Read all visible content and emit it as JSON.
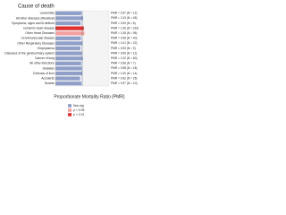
{
  "chart_data": {
    "type": "hbar",
    "title": "Cause of death",
    "xlabel": "Proportionate Mortality Ratio (PMR)",
    "categories": [
      "Leukemias",
      "All other diseases (Residual)",
      "Symptoms, signs and ill-defined",
      "Ischemic heart disease",
      "Other Heart Diseases",
      "Cerebrovascular disease",
      "Other Respiratory Diseases",
      "Emphysema",
      "Diseases of the genitourinary system",
      "Cancer of lung",
      "All other infections",
      "Diabetes",
      "Cirrhosis of liver",
      "Accidents",
      "Suicide"
    ],
    "values": [
      0.97,
      1.03,
      0.94,
      1.06,
      1.08,
      0.95,
      1.01,
      0.93,
      0.99,
      1.02,
      0.96,
      0.98,
      1.0,
      0.92,
      0.97
    ],
    "value_labels": [
      "PMR = 0.97 (N = 12)",
      "PMR = 1.03 (N = 45)",
      "PMR = 0.94 (N = 8)",
      "PMR = 1.06 (N = 310)",
      "PMR = 1.08 (N = 96)",
      "PMR = 0.95 (N = 40)",
      "PMR = 1.01 (N = 22)",
      "PMR = 0.93 (N = 9)",
      "PMR = 0.99 (N = 11)",
      "PMR = 1.02 (N = 60)",
      "PMR = 0.96 (N = 7)",
      "PMR = 0.98 (N = 18)",
      "PMR = 1.00 (N = 14)",
      "PMR = 0.92 (N = 25)",
      "PMR = 0.97 (N = 10)"
    ],
    "colors": [
      "#8f9fc8",
      "#8f9fc8",
      "#8f9fc8",
      "#e03030",
      "#f3a0a0",
      "#8f9fc8",
      "#8f9fc8",
      "#8f9fc8",
      "#8f9fc8",
      "#8f9fc8",
      "#8f9fc8",
      "#8f9fc8",
      "#8f9fc8",
      "#8f9fc8",
      "#8f9fc8"
    ],
    "xlim": [
      0,
      2
    ],
    "legend": [
      {
        "name": "Non-sig",
        "color": "#8f9fc8"
      },
      {
        "name": "p < 0.05",
        "color": "#f3a0a0"
      },
      {
        "name": "p < 0.01",
        "color": "#e03030"
      }
    ]
  }
}
